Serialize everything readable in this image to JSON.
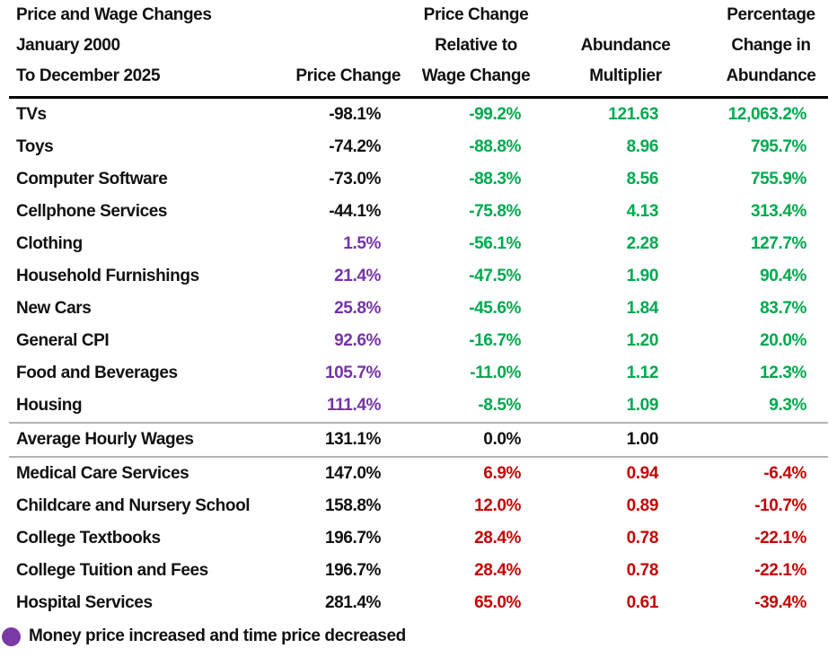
{
  "palette": {
    "black": "#111111",
    "green": "#00A94F",
    "purple": "#7633A8",
    "red": "#C40505",
    "legend_dot": "#7A3AA5",
    "separator_line": "#B3B3B3",
    "header_rule": "#000000",
    "background": "#FFFFFF"
  },
  "table": {
    "title_lines": [
      "Price and Wage Changes",
      "January 2000",
      "To December 2025"
    ],
    "column_headers": {
      "price_change": [
        "Price Change"
      ],
      "relative_price_change": [
        "Price Change",
        "Relative to",
        "Wage Change"
      ],
      "abundance_multiplier": [
        "Abundance",
        "Multiplier"
      ],
      "abundance_change": [
        "Percentage",
        "Change in",
        "Abundance"
      ]
    }
  },
  "legend": {
    "text": "Money price increased and time price decreased"
  },
  "chart_data": {
    "type": "table",
    "title": "Price and Wage Changes January 2000 To December 2025",
    "columns": [
      "Price Change",
      "Price Change Relative to Wage Change",
      "Abundance Multiplier",
      "Percentage Change in Abundance"
    ],
    "rows": [
      {
        "label": "TVs",
        "price_change": "-98.1%",
        "price_change_color": "black",
        "relative_price_change": "-99.2%",
        "abundance_multiplier": "121.63",
        "abundance_change": "12,063.2%",
        "trend_color": "green"
      },
      {
        "label": "Toys",
        "price_change": "-74.2%",
        "price_change_color": "black",
        "relative_price_change": "-88.8%",
        "abundance_multiplier": "8.96",
        "abundance_change": "795.7%",
        "trend_color": "green"
      },
      {
        "label": "Computer Software",
        "price_change": "-73.0%",
        "price_change_color": "black",
        "relative_price_change": "-88.3%",
        "abundance_multiplier": "8.56",
        "abundance_change": "755.9%",
        "trend_color": "green"
      },
      {
        "label": "Cellphone Services",
        "price_change": "-44.1%",
        "price_change_color": "black",
        "relative_price_change": "-75.8%",
        "abundance_multiplier": "4.13",
        "abundance_change": "313.4%",
        "trend_color": "green"
      },
      {
        "label": "Clothing",
        "price_change": "1.5%",
        "price_change_color": "purple",
        "relative_price_change": "-56.1%",
        "abundance_multiplier": "2.28",
        "abundance_change": "127.7%",
        "trend_color": "green"
      },
      {
        "label": "Household Furnishings",
        "price_change": "21.4%",
        "price_change_color": "purple",
        "relative_price_change": "-47.5%",
        "abundance_multiplier": "1.90",
        "abundance_change": "90.4%",
        "trend_color": "green"
      },
      {
        "label": "New Cars",
        "price_change": "25.8%",
        "price_change_color": "purple",
        "relative_price_change": "-45.6%",
        "abundance_multiplier": "1.84",
        "abundance_change": "83.7%",
        "trend_color": "green"
      },
      {
        "label": "General CPI",
        "price_change": "92.6%",
        "price_change_color": "purple",
        "relative_price_change": "-16.7%",
        "abundance_multiplier": "1.20",
        "abundance_change": "20.0%",
        "trend_color": "green"
      },
      {
        "label": "Food and Beverages",
        "price_change": "105.7%",
        "price_change_color": "purple",
        "relative_price_change": "-11.0%",
        "abundance_multiplier": "1.12",
        "abundance_change": "12.3%",
        "trend_color": "green"
      },
      {
        "label": "Housing",
        "price_change": "111.4%",
        "price_change_color": "purple",
        "relative_price_change": "-8.5%",
        "abundance_multiplier": "1.09",
        "abundance_change": "9.3%",
        "trend_color": "green"
      },
      {
        "label": "Average Hourly Wages",
        "price_change": "131.1%",
        "price_change_color": "black",
        "relative_price_change": "0.0%",
        "abundance_multiplier": "1.00",
        "abundance_change": "",
        "trend_color": "black",
        "separator_above": true,
        "separator_below": true
      },
      {
        "label": "Medical Care Services",
        "price_change": "147.0%",
        "price_change_color": "black",
        "relative_price_change": "6.9%",
        "abundance_multiplier": "0.94",
        "abundance_change": "-6.4%",
        "trend_color": "red"
      },
      {
        "label": "Childcare and Nursery School",
        "price_change": "158.8%",
        "price_change_color": "black",
        "relative_price_change": "12.0%",
        "abundance_multiplier": "0.89",
        "abundance_change": "-10.7%",
        "trend_color": "red"
      },
      {
        "label": "College Textbooks",
        "price_change": "196.7%",
        "price_change_color": "black",
        "relative_price_change": "28.4%",
        "abundance_multiplier": "0.78",
        "abundance_change": "-22.1%",
        "trend_color": "red"
      },
      {
        "label": "College Tuition and Fees",
        "price_change": "196.7%",
        "price_change_color": "black",
        "relative_price_change": "28.4%",
        "abundance_multiplier": "0.78",
        "abundance_change": "-22.1%",
        "trend_color": "red"
      },
      {
        "label": "Hospital Services",
        "price_change": "281.4%",
        "price_change_color": "black",
        "relative_price_change": "65.0%",
        "abundance_multiplier": "0.61",
        "abundance_change": "-39.4%",
        "trend_color": "red"
      }
    ]
  }
}
